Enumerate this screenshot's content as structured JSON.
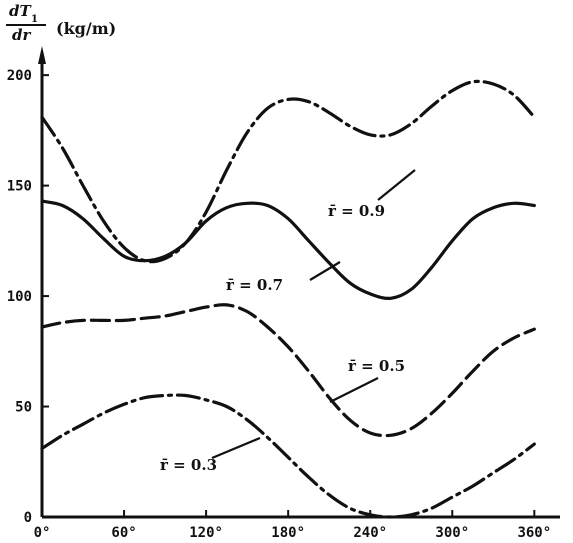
{
  "chart_data": {
    "type": "line",
    "ylabel_numerator": "dT",
    "ylabel_numerator_sub": "1",
    "ylabel_denominator": "dr",
    "ylabel_unit": "(kg/m)",
    "xlim": [
      0,
      370
    ],
    "ylim": [
      0,
      215
    ],
    "x_ticks": [
      0,
      60,
      120,
      180,
      240,
      300,
      360
    ],
    "x_tick_labels": [
      "0°",
      "60°",
      "120°",
      "180°",
      "240°",
      "300°",
      "360°"
    ],
    "y_ticks": [
      0,
      50,
      100,
      150,
      200
    ],
    "y_tick_labels": [
      "0",
      "50",
      "100",
      "150",
      "200"
    ],
    "grid": false,
    "series": [
      {
        "name": "r̄ = 0.9",
        "style": "dash-dot",
        "x": [
          0,
          15,
          30,
          45,
          60,
          75,
          90,
          105,
          120,
          135,
          150,
          165,
          180,
          195,
          210,
          225,
          240,
          255,
          270,
          285,
          300,
          315,
          330,
          345,
          360
        ],
        "y": [
          181,
          167,
          150,
          134,
          122,
          116,
          117,
          124,
          138,
          157,
          174,
          185,
          189,
          188,
          183,
          177,
          173,
          173,
          178,
          186,
          193,
          197,
          196,
          191,
          181
        ]
      },
      {
        "name": "r̄ = 0.7",
        "style": "solid",
        "x": [
          0,
          15,
          30,
          45,
          60,
          75,
          90,
          105,
          120,
          135,
          150,
          165,
          180,
          195,
          210,
          225,
          240,
          255,
          270,
          285,
          300,
          315,
          330,
          345,
          360
        ],
        "y": [
          143,
          141,
          135,
          126,
          118,
          116,
          118,
          124,
          134,
          140,
          142,
          141,
          135,
          125,
          115,
          106,
          101,
          99,
          103,
          113,
          125,
          135,
          140,
          142,
          141
        ]
      },
      {
        "name": "r̄ = 0.5",
        "style": "long-dash",
        "x": [
          0,
          15,
          30,
          45,
          60,
          75,
          90,
          105,
          120,
          135,
          150,
          165,
          180,
          195,
          210,
          225,
          240,
          255,
          270,
          285,
          300,
          315,
          330,
          345,
          360
        ],
        "y": [
          86,
          88,
          89,
          89,
          89,
          90,
          91,
          93,
          95,
          96,
          93,
          86,
          77,
          66,
          54,
          44,
          38,
          37,
          40,
          47,
          56,
          66,
          75,
          81,
          85
        ]
      },
      {
        "name": "r̄ = 0.3",
        "style": "dash-dot",
        "x": [
          0,
          15,
          30,
          45,
          60,
          75,
          90,
          105,
          120,
          135,
          150,
          165,
          180,
          195,
          210,
          225,
          240,
          255,
          270,
          285,
          300,
          315,
          330,
          345,
          360
        ],
        "y": [
          31,
          37,
          42,
          47,
          51,
          54,
          55,
          55,
          53,
          50,
          44,
          36,
          27,
          18,
          10,
          4,
          1,
          0,
          1,
          4,
          9,
          14,
          20,
          26,
          33
        ]
      }
    ],
    "series_labels": [
      "r̄ = 0.9",
      "r̄ = 0.7",
      "r̄ = 0.5",
      "r̄ = 0.3"
    ]
  }
}
